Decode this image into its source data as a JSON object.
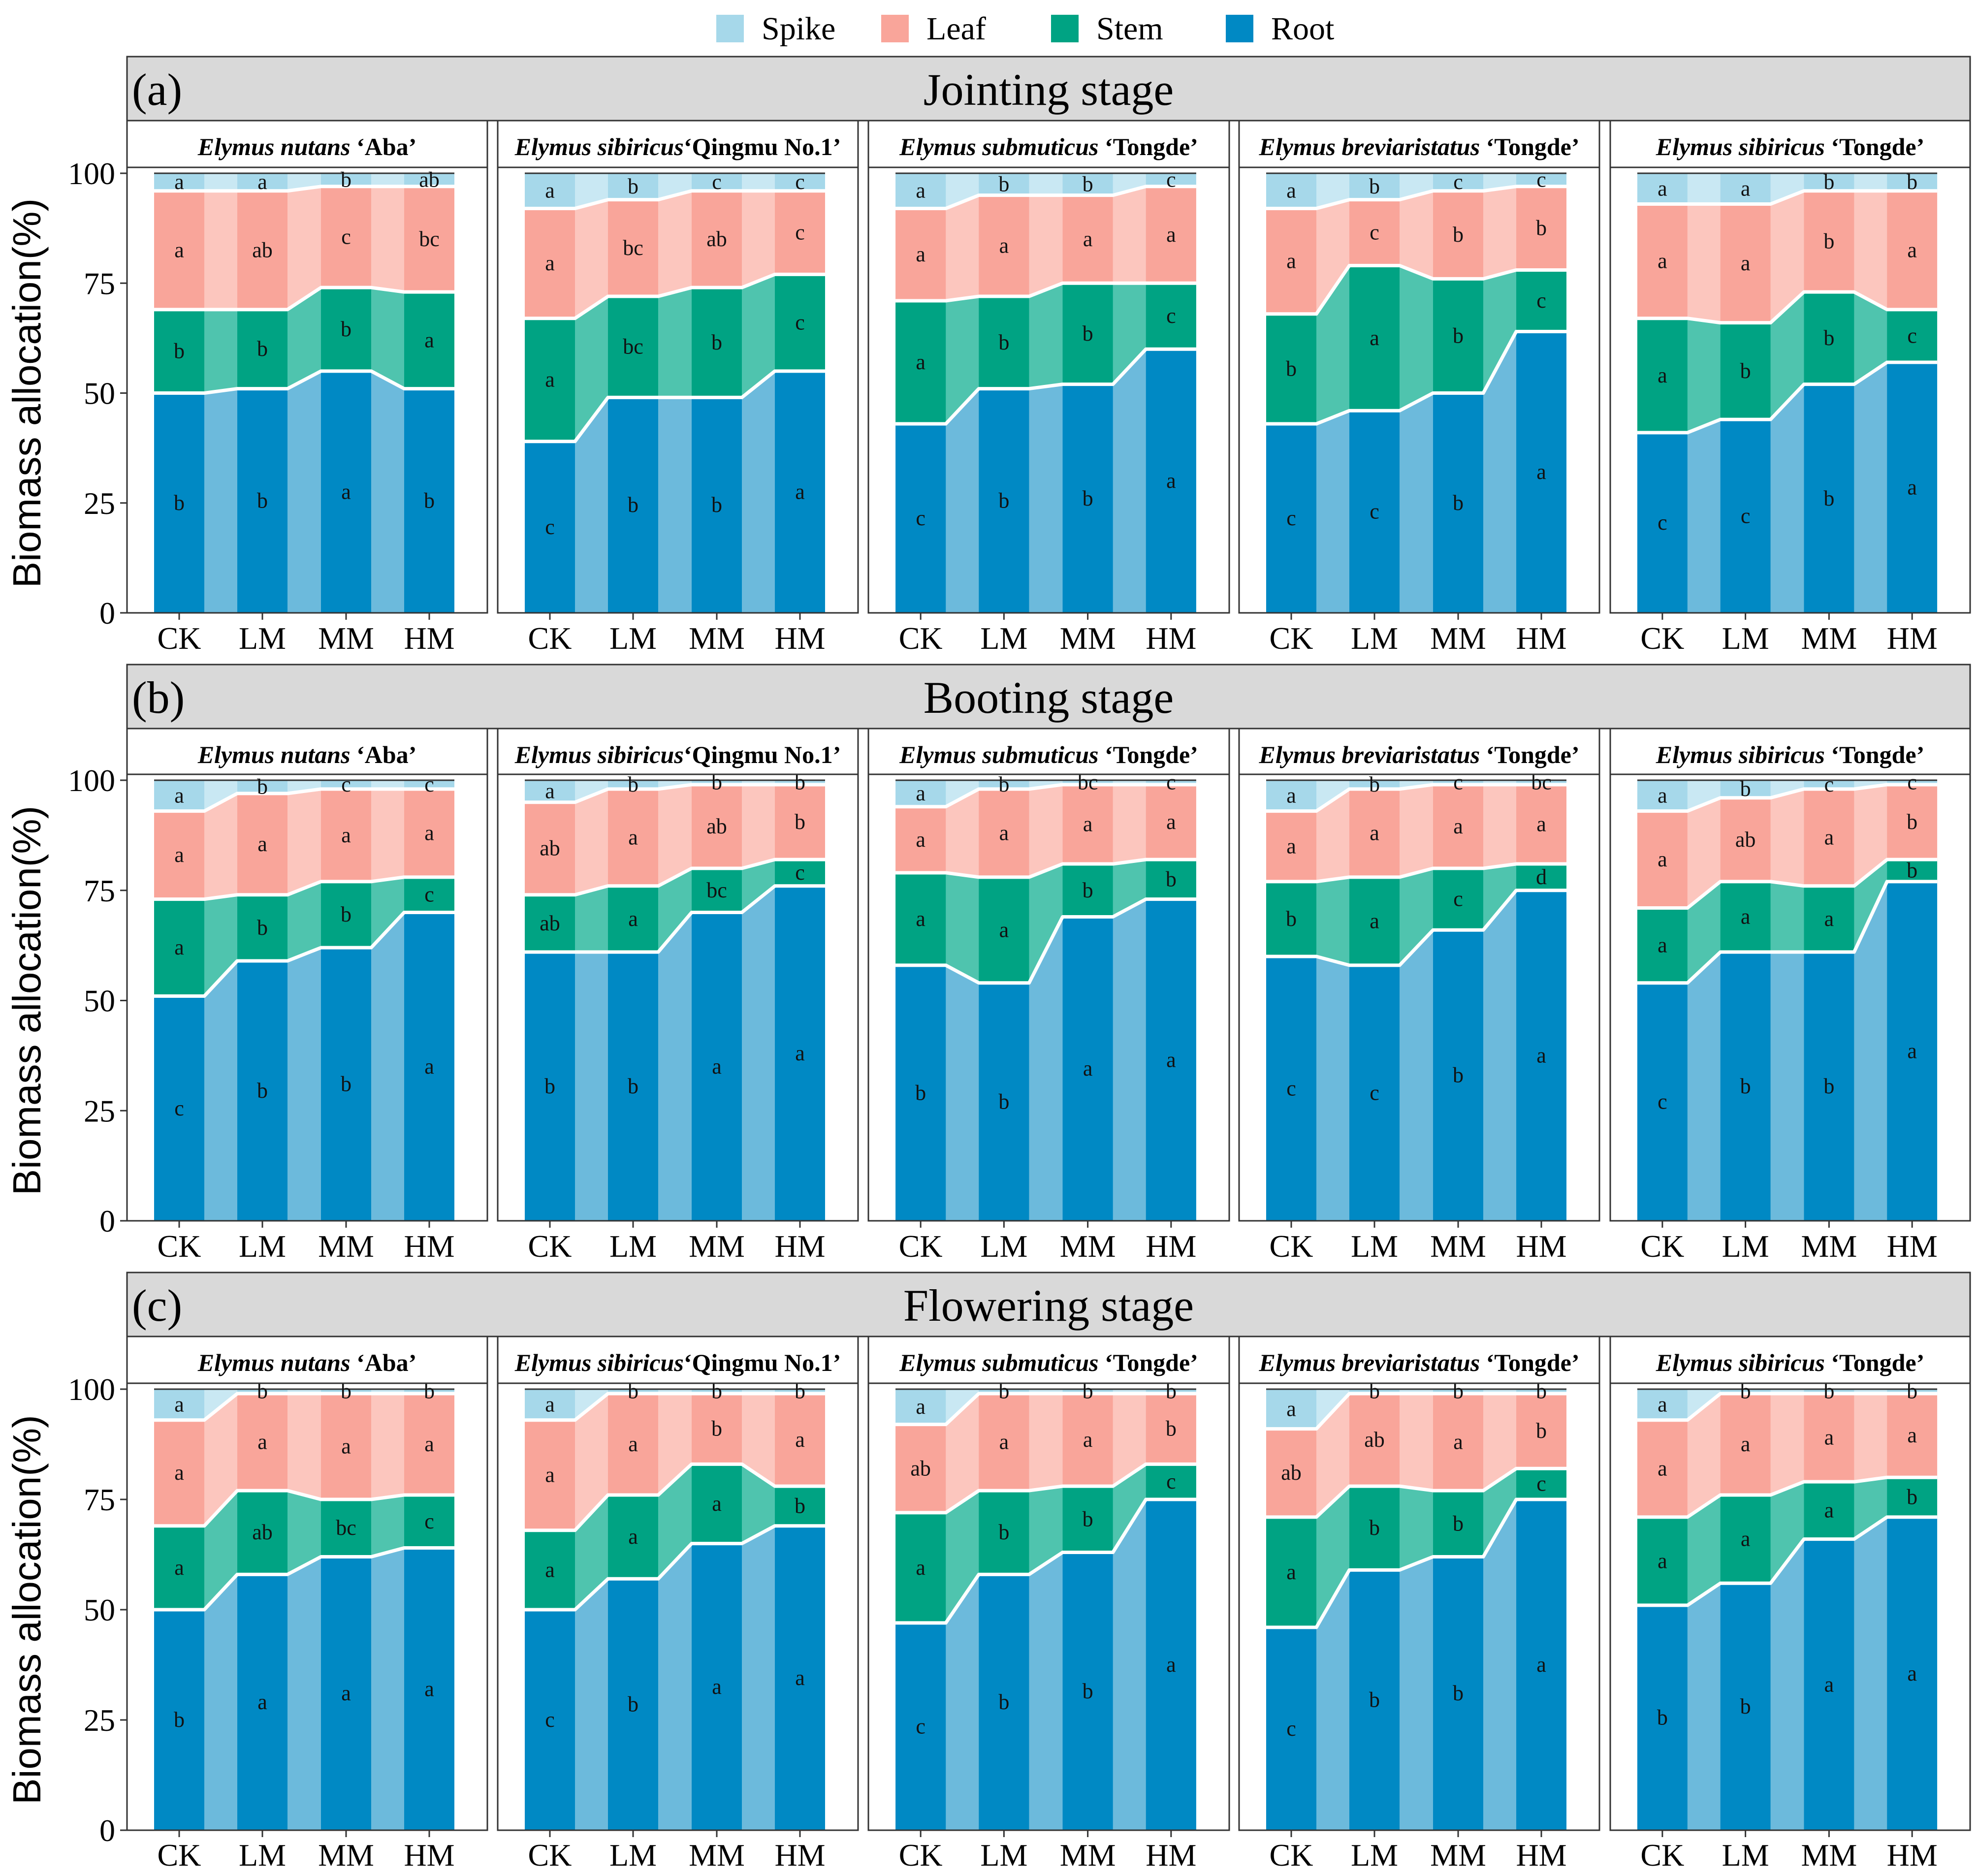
{
  "legend": [
    {
      "label": "Spike",
      "color": "#A6D8EA"
    },
    {
      "label": "Leaf",
      "color": "#F9A59A"
    },
    {
      "label": "Stem",
      "color": "#00A383"
    },
    {
      "label": "Root",
      "color": "#0089C4"
    }
  ],
  "chart_data": {
    "type": "area",
    "description_type": "stacked percent area/bar composite, faceted",
    "ylabel": "Biomass allocation(%)",
    "ylim": [
      0,
      100
    ],
    "yticks": [
      0,
      25,
      50,
      75,
      100
    ],
    "categories": [
      "CK",
      "LM",
      "MM",
      "HM"
    ],
    "components": [
      "Root",
      "Stem",
      "Leaf",
      "Spike"
    ],
    "facets": [
      {
        "italic": "Elymus nutans",
        "plain": " ‘Aba’"
      },
      {
        "italic": "Elymus sibiricus",
        "plain": "‘Qingmu No.1’"
      },
      {
        "italic": "Elymus  submuticus",
        "plain": " ‘Tongde’"
      },
      {
        "italic": "Elymus breviaristatus",
        "plain": " ‘Tongde’"
      },
      {
        "italic": "Elymus sibiricus",
        "plain": " ‘Tongde’"
      }
    ],
    "stages": [
      {
        "tag": "(a)",
        "title": "Jointing stage",
        "panels": [
          {
            "root": [
              50,
              51,
              55,
              51
            ],
            "stem": [
              69,
              69,
              74,
              73
            ],
            "leaf": [
              96,
              96,
              97,
              97
            ],
            "letters": {
              "root": [
                "b",
                "b",
                "a",
                "b"
              ],
              "stem": [
                "b",
                "b",
                "b",
                "a"
              ],
              "leaf": [
                "a",
                "ab",
                "c",
                "bc"
              ],
              "spike": [
                "a",
                "a",
                "b",
                "ab"
              ]
            }
          },
          {
            "root": [
              39,
              49,
              49,
              55
            ],
            "stem": [
              67,
              72,
              74,
              77
            ],
            "leaf": [
              92,
              94,
              96,
              96
            ],
            "letters": {
              "root": [
                "c",
                "b",
                "b",
                "a"
              ],
              "stem": [
                "a",
                "bc",
                "b",
                "c"
              ],
              "leaf": [
                "a",
                "bc",
                "ab",
                "c"
              ],
              "spike": [
                "a",
                "b",
                "c",
                "c"
              ]
            }
          },
          {
            "root": [
              43,
              51,
              52,
              60
            ],
            "stem": [
              71,
              72,
              75,
              75
            ],
            "leaf": [
              92,
              95,
              95,
              97
            ],
            "letters": {
              "root": [
                "c",
                "b",
                "b",
                "a"
              ],
              "stem": [
                "a",
                "b",
                "b",
                "c"
              ],
              "leaf": [
                "a",
                "a",
                "a",
                "a"
              ],
              "spike": [
                "a",
                "b",
                "b",
                "c"
              ]
            }
          },
          {
            "root": [
              43,
              46,
              50,
              64
            ],
            "stem": [
              68,
              79,
              76,
              78
            ],
            "leaf": [
              92,
              94,
              96,
              97
            ],
            "letters": {
              "root": [
                "c",
                "c",
                "b",
                "a"
              ],
              "stem": [
                "b",
                "a",
                "b",
                "c"
              ],
              "leaf": [
                "a",
                "c",
                "b",
                "b"
              ],
              "spike": [
                "a",
                "b",
                "c",
                "c"
              ]
            }
          },
          {
            "root": [
              41,
              44,
              52,
              57
            ],
            "stem": [
              67,
              66,
              73,
              69
            ],
            "leaf": [
              93,
              93,
              96,
              96
            ],
            "letters": {
              "root": [
                "c",
                "c",
                "b",
                "a"
              ],
              "stem": [
                "a",
                "b",
                "b",
                "c"
              ],
              "leaf": [
                "a",
                "a",
                "b",
                "a"
              ],
              "spike": [
                "a",
                "a",
                "b",
                "b"
              ]
            }
          }
        ]
      },
      {
        "tag": "(b)",
        "title": "Booting stage",
        "panels": [
          {
            "root": [
              51,
              59,
              62,
              70
            ],
            "stem": [
              73,
              74,
              77,
              78
            ],
            "leaf": [
              93,
              97,
              98,
              98
            ],
            "letters": {
              "root": [
                "c",
                "b",
                "b",
                "a"
              ],
              "stem": [
                "a",
                "b",
                "b",
                "c"
              ],
              "leaf": [
                "a",
                "a",
                "a",
                "a"
              ],
              "spike": [
                "a",
                "b",
                "c",
                "c"
              ]
            }
          },
          {
            "root": [
              61,
              61,
              70,
              76
            ],
            "stem": [
              74,
              76,
              80,
              82
            ],
            "leaf": [
              95,
              98,
              99,
              99
            ],
            "letters": {
              "root": [
                "b",
                "b",
                "a",
                "a"
              ],
              "stem": [
                "ab",
                "a",
                "bc",
                "c"
              ],
              "leaf": [
                "ab",
                "a",
                "ab",
                "b"
              ],
              "spike": [
                "a",
                "b",
                "b",
                "b"
              ]
            }
          },
          {
            "root": [
              58,
              54,
              69,
              73
            ],
            "stem": [
              79,
              78,
              81,
              82
            ],
            "leaf": [
              94,
              98,
              99,
              99
            ],
            "letters": {
              "root": [
                "b",
                "b",
                "a",
                "a"
              ],
              "stem": [
                "a",
                "a",
                "b",
                "b"
              ],
              "leaf": [
                "a",
                "a",
                "a",
                "a"
              ],
              "spike": [
                "a",
                "b",
                "bc",
                "c"
              ]
            }
          },
          {
            "root": [
              60,
              58,
              66,
              75
            ],
            "stem": [
              77,
              78,
              80,
              81
            ],
            "leaf": [
              93,
              98,
              99,
              99
            ],
            "letters": {
              "root": [
                "c",
                "c",
                "b",
                "a"
              ],
              "stem": [
                "b",
                "a",
                "c",
                "d"
              ],
              "leaf": [
                "a",
                "a",
                "a",
                "a"
              ],
              "spike": [
                "a",
                "b",
                "c",
                "bc"
              ]
            }
          },
          {
            "root": [
              54,
              61,
              61,
              77
            ],
            "stem": [
              71,
              77,
              76,
              82
            ],
            "leaf": [
              93,
              96,
              98,
              99
            ],
            "letters": {
              "root": [
                "c",
                "b",
                "b",
                "a"
              ],
              "stem": [
                "a",
                "a",
                "a",
                "b"
              ],
              "leaf": [
                "a",
                "ab",
                "a",
                "b"
              ],
              "spike": [
                "a",
                "b",
                "c",
                "c"
              ]
            }
          }
        ]
      },
      {
        "tag": "(c)",
        "title": "Flowering stage",
        "panels": [
          {
            "root": [
              50,
              58,
              62,
              64
            ],
            "stem": [
              69,
              77,
              75,
              76
            ],
            "leaf": [
              93,
              99,
              99,
              99
            ],
            "letters": {
              "root": [
                "b",
                "a",
                "a",
                "a"
              ],
              "stem": [
                "a",
                "ab",
                "bc",
                "c"
              ],
              "leaf": [
                "a",
                "a",
                "a",
                "a"
              ],
              "spike": [
                "a",
                "b",
                "b",
                "b"
              ]
            }
          },
          {
            "root": [
              50,
              57,
              65,
              69
            ],
            "stem": [
              68,
              76,
              83,
              78
            ],
            "leaf": [
              93,
              99,
              99,
              99
            ],
            "letters": {
              "root": [
                "c",
                "b",
                "a",
                "a"
              ],
              "stem": [
                "a",
                "a",
                "a",
                "b"
              ],
              "leaf": [
                "a",
                "a",
                "b",
                "a"
              ],
              "spike": [
                "a",
                "b",
                "b",
                "b"
              ]
            }
          },
          {
            "root": [
              47,
              58,
              63,
              75
            ],
            "stem": [
              72,
              77,
              78,
              83
            ],
            "leaf": [
              92,
              99,
              99,
              99
            ],
            "letters": {
              "root": [
                "c",
                "b",
                "b",
                "a"
              ],
              "stem": [
                "a",
                "b",
                "b",
                "c"
              ],
              "leaf": [
                "ab",
                "a",
                "a",
                "b"
              ],
              "spike": [
                "a",
                "b",
                "b",
                "b"
              ]
            }
          },
          {
            "root": [
              46,
              59,
              62,
              75
            ],
            "stem": [
              71,
              78,
              77,
              82
            ],
            "leaf": [
              91,
              99,
              99,
              99
            ],
            "letters": {
              "root": [
                "c",
                "b",
                "b",
                "a"
              ],
              "stem": [
                "a",
                "b",
                "b",
                "c"
              ],
              "leaf": [
                "ab",
                "ab",
                "a",
                "b"
              ],
              "spike": [
                "a",
                "b",
                "b",
                "b"
              ]
            }
          },
          {
            "root": [
              51,
              56,
              66,
              71
            ],
            "stem": [
              71,
              76,
              79,
              80
            ],
            "leaf": [
              93,
              99,
              99,
              99
            ],
            "letters": {
              "root": [
                "b",
                "b",
                "a",
                "a"
              ],
              "stem": [
                "a",
                "a",
                "a",
                "b"
              ],
              "leaf": [
                "a",
                "a",
                "a",
                "a"
              ],
              "spike": [
                "a",
                "b",
                "b",
                "b"
              ]
            }
          }
        ]
      }
    ]
  }
}
